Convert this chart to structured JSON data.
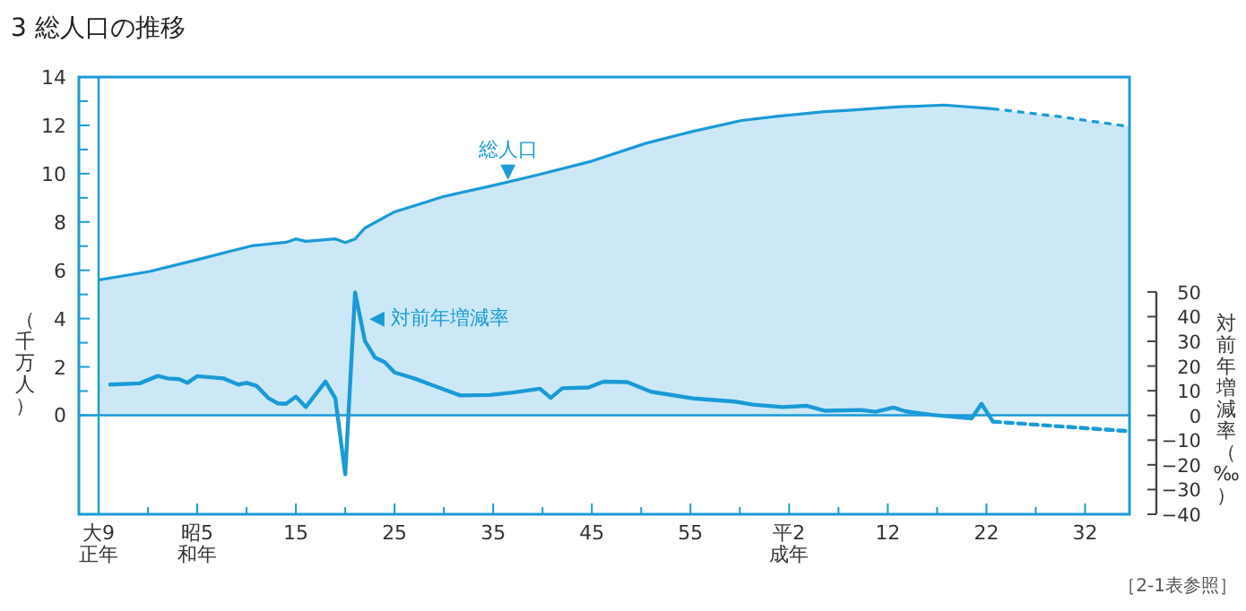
{
  "chart_data": {
    "type": "area",
    "title": "3 総人口の推移",
    "ylabel": "（千万人）",
    "y2label": "対前年増減率（‰）",
    "xlim": [
      "1918",
      "2024-07"
    ],
    "xticks": [
      {
        "value": "1920",
        "label": "大9\n正年"
      },
      {
        "value": "1925",
        "label": null
      },
      {
        "value": "1930",
        "label": "昭5\n和年"
      },
      {
        "value": "1935",
        "label": null
      },
      {
        "value": "1940",
        "label": "15"
      },
      {
        "value": "1945",
        "label": null
      },
      {
        "value": "1950",
        "label": "25"
      },
      {
        "value": "1955",
        "label": null
      },
      {
        "value": "1960",
        "label": "35"
      },
      {
        "value": "1965",
        "label": null
      },
      {
        "value": "1970",
        "label": "45"
      },
      {
        "value": "1975",
        "label": null
      },
      {
        "value": "1980",
        "label": "55"
      },
      {
        "value": "1985",
        "label": null
      },
      {
        "value": "1990",
        "label": "平2\n成年"
      },
      {
        "value": "1995",
        "label": null
      },
      {
        "value": "2000",
        "label": "12"
      },
      {
        "value": "2005",
        "label": null
      },
      {
        "value": "2010",
        "label": "22"
      },
      {
        "value": "2015",
        "label": null
      },
      {
        "value": "2020",
        "label": "32"
      }
    ],
    "ylim": [
      -4.1,
      14
    ],
    "yticks": [
      0,
      {
        "value": 1,
        "label": null
      },
      2,
      {
        "value": 3,
        "label": null
      },
      4,
      {
        "value": 5,
        "label": null
      },
      6,
      {
        "value": 7,
        "label": null
      },
      8,
      {
        "value": 9,
        "label": null
      },
      10,
      {
        "value": 11,
        "label": null
      },
      12,
      {
        "value": 13,
        "label": null
      },
      14
    ],
    "y2lim": [
      -40,
      137
    ],
    "y2ticks": [
      -40,
      -30,
      -20,
      -10,
      0,
      10,
      20,
      30,
      40,
      50
    ],
    "ref_lines": [
      {
        "axis": "y",
        "value": 0,
        "color": "#1a9ad6"
      },
      {
        "axis": "x",
        "value": "1920",
        "color": "#1a9ad6"
      }
    ],
    "series": [
      {
        "type": "area",
        "color": "#1a9ad6",
        "line_style": "solid",
        "x": [
          "1920",
          "1925-03",
          "1930",
          "1935-07",
          "1939",
          "1940",
          "1941",
          "1944",
          "1945",
          "1946",
          "1947",
          "1950",
          "1953",
          "1954-11",
          "1959-09",
          "1964-07",
          "1970",
          "1975-07",
          "1980-04",
          "1985-03",
          "1988-10",
          "1993-08",
          "1996",
          "2000-11",
          "2005-10",
          "2010-08"
        ],
        "values": [
          5.6,
          5.95,
          6.44,
          7.01,
          7.16,
          7.3,
          7.2,
          7.3,
          7.15,
          7.3,
          7.75,
          8.42,
          8.8,
          9.04,
          9.48,
          9.95,
          10.52,
          11.26,
          11.75,
          12.2,
          12.37,
          12.57,
          12.62,
          12.76,
          12.84,
          12.69
        ]
      },
      {
        "type": "area",
        "color": "#1a9ad6",
        "line_style": "dashed",
        "x": [
          "2010-08",
          "2017-04",
          "2024-07"
        ],
        "values": [
          12.69,
          12.37,
          11.95
        ]
      },
      {
        "type": "line",
        "axis": "y2",
        "color": "#1a9ad6",
        "line_style": "solid",
        "x": [
          "1921-03",
          "1924-03",
          "1926",
          "1927",
          "1928-03",
          "1929",
          "1930",
          "1932-09",
          "1934-03",
          "1935",
          "1936",
          "1937-04",
          "1938-03",
          "1939",
          "1940",
          "1941",
          "1943",
          "1944",
          "1945",
          "1946",
          "1947",
          "1948",
          "1949",
          "1950",
          "1952",
          "1953-09",
          "1956-09",
          "1959-09",
          "1962",
          "1964-10",
          "1965-11",
          "1967",
          "1969-09",
          "1971-03",
          "1973-08",
          "1976",
          "1980-04",
          "1984-07",
          "1986-05",
          "1989-05",
          "1991-10",
          "1993-08",
          "1997-04",
          "1998-10",
          "2000-08",
          "2001-10",
          "2004-07",
          "2008-07",
          "2009-07",
          "2010-09"
        ],
        "values": [
          12.5,
          13,
          16,
          15,
          14.7,
          13.2,
          15.9,
          15,
          12.5,
          13.2,
          12,
          6.9,
          4.9,
          4.7,
          7.6,
          3.4,
          13.7,
          6.9,
          -23.8,
          49.8,
          30.1,
          23.5,
          21.6,
          17.4,
          15,
          12.5,
          8.1,
          8.3,
          9.3,
          10.8,
          7.1,
          11,
          11.3,
          13.7,
          13.5,
          9.6,
          6.9,
          5.6,
          4.4,
          3.4,
          3.9,
          1.9,
          2.2,
          1.5,
          3.2,
          1.7,
          0.2,
          -1.2,
          4.7,
          -2.5
        ]
      },
      {
        "type": "line",
        "axis": "y2",
        "color": "#1a9ad6",
        "line_style": "dashed",
        "x": [
          "2010-09",
          "2017",
          "2024-07"
        ],
        "values": [
          -2.5,
          -4.3,
          -6.4
        ]
      }
    ],
    "annotations": [
      {
        "text": "総人口\n▼",
        "x": "1961-07",
        "y": 9.55
      },
      "◀ 対前年増減率",
      "［2-1表参照］"
    ]
  }
}
